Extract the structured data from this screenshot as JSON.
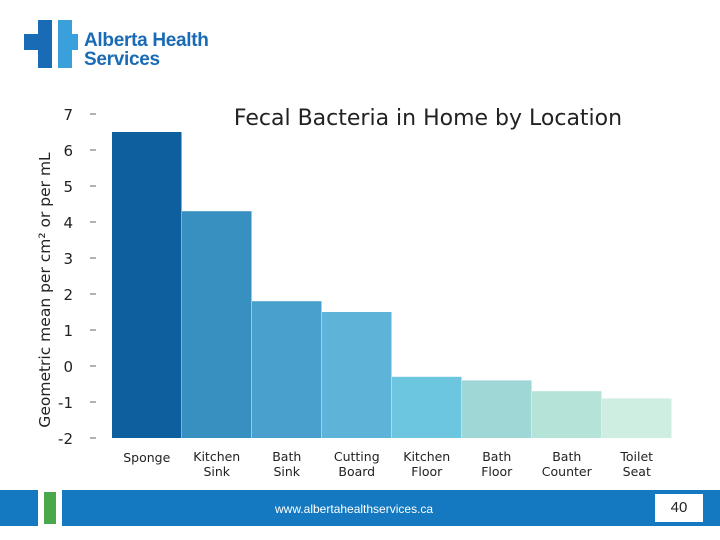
{
  "brand": {
    "line1": "Alberta Health",
    "line2": "Services",
    "logo_color": "#1a6bb5",
    "logo_accent": "#4aa84a"
  },
  "footer": {
    "url": "www.albertahealthservices.ca",
    "page_number": "40",
    "bar_color": "#1479c0"
  },
  "chart_data": {
    "type": "bar",
    "title": "Fecal Bacteria in Home by Location",
    "ylabel": "Geometric mean per cm² or per mL",
    "xlabel": "",
    "ylim": [
      -2,
      7
    ],
    "yticks": [
      7,
      6,
      5,
      4,
      3,
      2,
      1,
      0,
      -1,
      -2
    ],
    "grid": false,
    "categories": [
      [
        "Sponge"
      ],
      [
        "Kitchen",
        "Sink"
      ],
      [
        "Bath",
        "Sink"
      ],
      [
        "Cutting",
        "Board"
      ],
      [
        "Kitchen",
        "Floor"
      ],
      [
        "Bath",
        "Floor"
      ],
      [
        "Bath",
        "Counter"
      ],
      [
        "Toilet",
        "Seat"
      ]
    ],
    "values": [
      6.5,
      4.3,
      1.8,
      1.5,
      -0.3,
      -0.4,
      -0.7,
      -0.9
    ],
    "colors": [
      "#0e5f9e",
      "#3790bf",
      "#4aa0cc",
      "#5db3d8",
      "#6dc6e0",
      "#9ed7d6",
      "#b6e3d8",
      "#cdeee0"
    ]
  }
}
